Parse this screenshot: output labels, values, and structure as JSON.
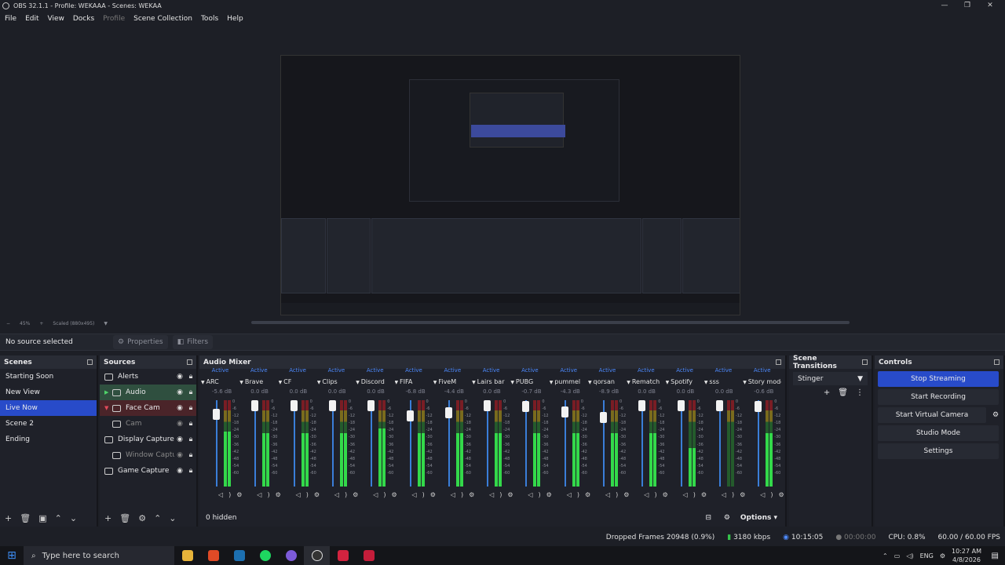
{
  "window": {
    "title": "OBS 32.1.1 - Profile: WEKAAA - Scenes: WEKAA",
    "controls": [
      "—",
      "❐",
      "✕"
    ]
  },
  "menu": [
    "File",
    "Edit",
    "View",
    "Docks",
    "Profile",
    "Scene Collection",
    "Tools",
    "Help"
  ],
  "preview": {
    "zoom": "45%",
    "scale_label": "Scaled (880x495)"
  },
  "source_toolbar": {
    "no_source": "No source selected",
    "properties": "Properties",
    "filters": "Filters"
  },
  "scenes": {
    "title": "Scenes",
    "items": [
      "Starting Soon",
      "New View",
      "Live Now",
      "Scene 2",
      "Ending"
    ],
    "selected": "Live Now"
  },
  "sources": {
    "title": "Sources",
    "items": [
      {
        "name": "Alerts",
        "type": "browser",
        "state": "normal"
      },
      {
        "name": "Audio",
        "type": "group",
        "state": "green"
      },
      {
        "name": "Face Cam",
        "type": "group",
        "state": "red"
      },
      {
        "name": "Cam",
        "type": "camera",
        "state": "dim"
      },
      {
        "name": "Display Capture",
        "type": "display",
        "state": "normal"
      },
      {
        "name": "Window Capture",
        "type": "window",
        "state": "dim"
      },
      {
        "name": "Game Capture",
        "type": "game",
        "state": "normal"
      }
    ]
  },
  "mixer": {
    "title": "Audio Mixer",
    "hidden": "0 hidden",
    "options": "Options",
    "active_label": "Active",
    "scale": [
      "0",
      "-6",
      "-12",
      "-18",
      "-24",
      "-30",
      "-36",
      "-42",
      "-48",
      "-54",
      "-60"
    ],
    "channels": [
      {
        "name": "ARC",
        "db": "-5.6 dB",
        "vol": 0.78,
        "level": 0.85
      },
      {
        "name": "Brave",
        "db": "0.0 dB",
        "vol": 1.0,
        "level": 0.82
      },
      {
        "name": "CF",
        "db": "0.0 dB",
        "vol": 1.0,
        "level": 0.82
      },
      {
        "name": "Clips",
        "db": "0.0 dB",
        "vol": 1.0,
        "level": 0.82
      },
      {
        "name": "Discord",
        "db": "0.0 dB",
        "vol": 1.0,
        "level": 0.9
      },
      {
        "name": "FIFA",
        "db": "-6.8 dB",
        "vol": 0.74,
        "level": 0.82
      },
      {
        "name": "FiveM",
        "db": "-4.4 dB",
        "vol": 0.82,
        "level": 0.82
      },
      {
        "name": "Lairs bar",
        "db": "0.0 dB",
        "vol": 1.0,
        "level": 0.82
      },
      {
        "name": "PUBG",
        "db": "-0.7 dB",
        "vol": 0.97,
        "level": 0.82
      },
      {
        "name": "pummel",
        "db": "-4.3 dB",
        "vol": 0.83,
        "level": 0.82
      },
      {
        "name": "qorsan",
        "db": "-8.9 dB",
        "vol": 0.7,
        "level": 0.82
      },
      {
        "name": "Rematch",
        "db": "0.0 dB",
        "vol": 1.0,
        "level": 0.82
      },
      {
        "name": "Spotify",
        "db": "0.0 dB",
        "vol": 1.0,
        "level": 0.6
      },
      {
        "name": "sss",
        "db": "0.0 dB",
        "vol": 1.0,
        "level": 0.0
      },
      {
        "name": "Story mode",
        "db": "-0.6 dB",
        "vol": 0.98,
        "level": 0.82
      }
    ]
  },
  "transitions": {
    "title": "Scene Transitions",
    "selected": "Stinger"
  },
  "controls": {
    "title": "Controls",
    "buttons": [
      "Stop Streaming",
      "Start Recording",
      "Start Virtual Camera",
      "Studio Mode",
      "Settings"
    ]
  },
  "status": {
    "dropped": "Dropped Frames 20948 (0.9%)",
    "bitrate": "3180 kbps",
    "stream_time": "10:15:05",
    "rec_time": "00:00:00",
    "cpu": "CPU: 0.8%",
    "fps": "60.00 / 60.00 FPS"
  },
  "taskbar": {
    "search_placeholder": "Type here to search",
    "lang": "ENG",
    "time": "10:27 AM",
    "date": "4/8/2026"
  },
  "colors": {
    "accent": "#284bc9",
    "meter_green": "#33d94a",
    "active_blue": "#4e8bff"
  }
}
